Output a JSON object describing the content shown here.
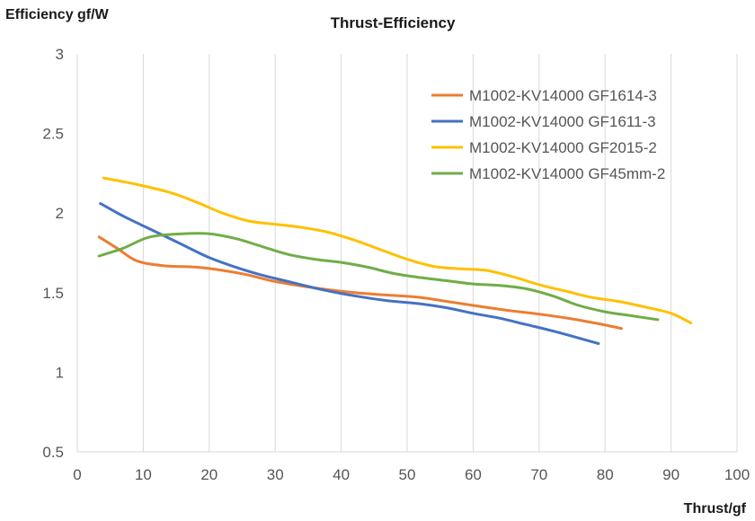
{
  "chart_data": {
    "type": "line",
    "title": "Thrust-Efficiency",
    "xlabel": "Thrust/gf",
    "ylabel": "Efficiency gf/W",
    "xlim": [
      0,
      100
    ],
    "ylim": [
      0.5,
      3
    ],
    "xticks": [
      0,
      10,
      20,
      30,
      40,
      50,
      60,
      70,
      80,
      90,
      100
    ],
    "yticks": [
      0.5,
      1,
      1.5,
      2,
      2.5,
      3
    ],
    "grid": "vertical",
    "legend_position": "top-right",
    "series": [
      {
        "name": "M1002-KV14000 GF1614-3",
        "color": "#ED7D31",
        "points": [
          [
            3.3,
            1.85
          ],
          [
            6,
            1.78
          ],
          [
            9,
            1.7
          ],
          [
            13,
            1.67
          ],
          [
            18,
            1.66
          ],
          [
            22,
            1.64
          ],
          [
            26,
            1.61
          ],
          [
            30,
            1.57
          ],
          [
            36,
            1.53
          ],
          [
            42,
            1.5
          ],
          [
            47,
            1.485
          ],
          [
            52,
            1.47
          ],
          [
            56,
            1.445
          ],
          [
            60,
            1.42
          ],
          [
            65,
            1.39
          ],
          [
            70,
            1.365
          ],
          [
            75,
            1.335
          ],
          [
            79,
            1.305
          ],
          [
            82.5,
            1.275
          ]
        ]
      },
      {
        "name": "M1002-KV14000 GF1611-3",
        "color": "#4472C4",
        "points": [
          [
            3.5,
            2.06
          ],
          [
            7,
            1.98
          ],
          [
            11,
            1.9
          ],
          [
            16,
            1.8
          ],
          [
            20,
            1.72
          ],
          [
            24,
            1.66
          ],
          [
            28,
            1.61
          ],
          [
            32,
            1.57
          ],
          [
            37,
            1.52
          ],
          [
            42,
            1.48
          ],
          [
            47,
            1.45
          ],
          [
            52,
            1.43
          ],
          [
            56,
            1.405
          ],
          [
            60,
            1.37
          ],
          [
            64,
            1.34
          ],
          [
            68,
            1.3
          ],
          [
            72,
            1.26
          ],
          [
            76,
            1.215
          ],
          [
            79,
            1.18
          ]
        ]
      },
      {
        "name": "M1002-KV14000 GF2015-2",
        "color": "#FFC000",
        "points": [
          [
            4,
            2.22
          ],
          [
            9,
            2.18
          ],
          [
            14,
            2.13
          ],
          [
            18,
            2.07
          ],
          [
            22,
            2.0
          ],
          [
            26,
            1.95
          ],
          [
            30,
            1.93
          ],
          [
            34,
            1.91
          ],
          [
            38,
            1.88
          ],
          [
            42,
            1.83
          ],
          [
            46,
            1.77
          ],
          [
            50,
            1.71
          ],
          [
            54,
            1.665
          ],
          [
            58,
            1.65
          ],
          [
            62,
            1.64
          ],
          [
            66,
            1.6
          ],
          [
            70,
            1.55
          ],
          [
            74,
            1.51
          ],
          [
            78,
            1.47
          ],
          [
            82,
            1.445
          ],
          [
            86,
            1.41
          ],
          [
            90,
            1.37
          ],
          [
            93,
            1.31
          ]
        ]
      },
      {
        "name": "M1002-KV14000 GF45mm-2",
        "color": "#70AD47",
        "points": [
          [
            3.3,
            1.73
          ],
          [
            7,
            1.78
          ],
          [
            11,
            1.85
          ],
          [
            16,
            1.87
          ],
          [
            20,
            1.87
          ],
          [
            24,
            1.84
          ],
          [
            28,
            1.79
          ],
          [
            32,
            1.74
          ],
          [
            36,
            1.71
          ],
          [
            40,
            1.69
          ],
          [
            44,
            1.66
          ],
          [
            48,
            1.62
          ],
          [
            52,
            1.595
          ],
          [
            56,
            1.575
          ],
          [
            60,
            1.555
          ],
          [
            64,
            1.545
          ],
          [
            68,
            1.525
          ],
          [
            72,
            1.48
          ],
          [
            76,
            1.42
          ],
          [
            80,
            1.38
          ],
          [
            84,
            1.355
          ],
          [
            88,
            1.33
          ]
        ]
      }
    ]
  }
}
